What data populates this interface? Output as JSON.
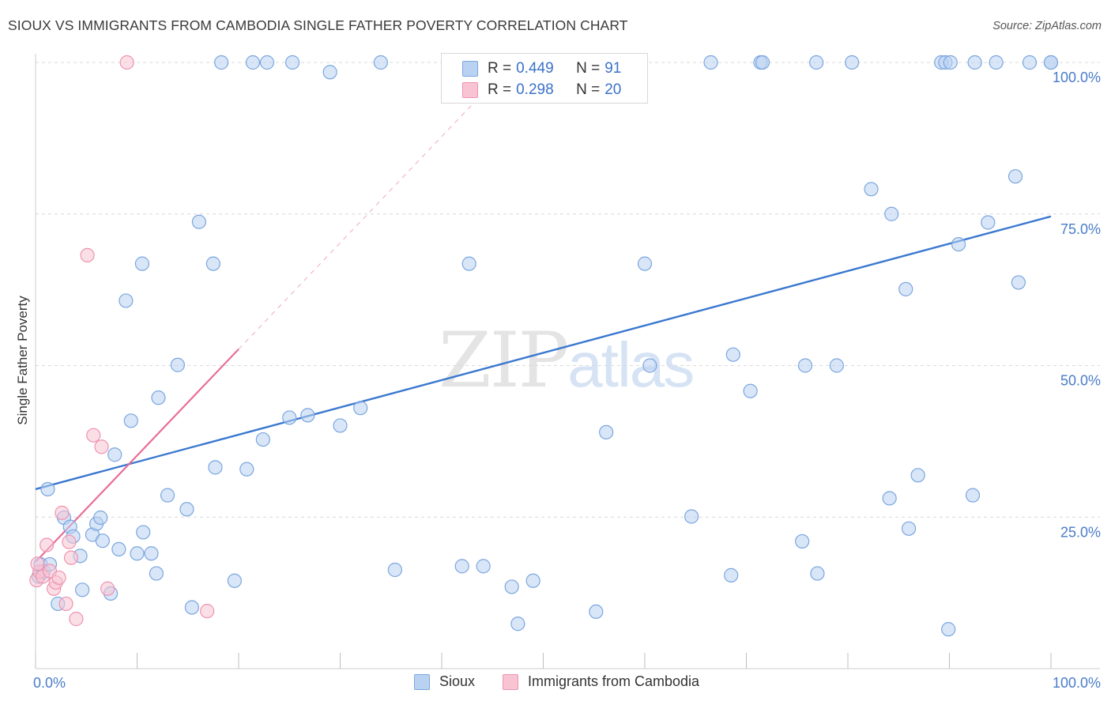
{
  "title": "SIOUX VS IMMIGRANTS FROM CAMBODIA SINGLE FATHER POVERTY CORRELATION CHART",
  "source": "Source: ZipAtlas.com",
  "watermark": {
    "zip": "ZIP",
    "atlas": "atlas"
  },
  "legend": {
    "rows": [
      {
        "r_label": "R = ",
        "r_value": "0.449",
        "n_label": "N = ",
        "n_value": "91"
      },
      {
        "r_label": "R = ",
        "r_value": "0.298",
        "n_label": "N = ",
        "n_value": "20"
      }
    ]
  },
  "colors": {
    "sioux_fill": "#b9d2f2",
    "sioux_stroke": "#7aa6de",
    "sioux_line": "#3a78cf",
    "cambodia_fill": "#f8c4d3",
    "cambodia_stroke": "#ee93b0",
    "cambodia_line": "#e86e96",
    "tick_text": "#4a7cc9",
    "grid": "#d9d9d9"
  },
  "chart_data": {
    "type": "scatter",
    "title": "SIOUX VS IMMIGRANTS FROM CAMBODIA SINGLE FATHER POVERTY CORRELATION CHART",
    "xlabel": "",
    "ylabel": "Single Father Poverty",
    "xlim": [
      0,
      100
    ],
    "ylim": [
      0,
      100
    ],
    "x_tick_labels": [
      "0.0%",
      "100.0%"
    ],
    "y_ticks": [
      25,
      50,
      75,
      100
    ],
    "y_tick_labels": [
      "25.0%",
      "50.0%",
      "75.0%",
      "100.0%"
    ],
    "grid": true,
    "legend_position": "bottom",
    "series": [
      {
        "name": "Sioux",
        "r": 0.449,
        "n": 91,
        "trend": {
          "x": [
            0,
            100
          ],
          "y": [
            29.6,
            74.6
          ],
          "style": "solid"
        },
        "points": [
          [
            0.3,
            15.2
          ],
          [
            0.5,
            17.2
          ],
          [
            0.8,
            16.0
          ],
          [
            1.2,
            29.6
          ],
          [
            1.4,
            17.2
          ],
          [
            2.2,
            10.7
          ],
          [
            2.8,
            24.9
          ],
          [
            3.4,
            23.4
          ],
          [
            3.7,
            21.8
          ],
          [
            4.4,
            18.6
          ],
          [
            4.6,
            13.0
          ],
          [
            5.6,
            22.1
          ],
          [
            6.0,
            23.9
          ],
          [
            6.4,
            24.9
          ],
          [
            6.6,
            21.1
          ],
          [
            7.4,
            12.4
          ],
          [
            7.8,
            35.3
          ],
          [
            8.2,
            19.7
          ],
          [
            8.9,
            60.7
          ],
          [
            9.4,
            40.9
          ],
          [
            10.0,
            19.0
          ],
          [
            10.5,
            66.8
          ],
          [
            10.6,
            22.5
          ],
          [
            11.4,
            19.0
          ],
          [
            11.9,
            15.7
          ],
          [
            12.1,
            44.7
          ],
          [
            13.0,
            28.6
          ],
          [
            14.0,
            50.1
          ],
          [
            14.9,
            26.3
          ],
          [
            15.4,
            10.1
          ],
          [
            16.1,
            73.7
          ],
          [
            17.5,
            66.8
          ],
          [
            17.7,
            33.2
          ],
          [
            18.3,
            100.0
          ],
          [
            19.6,
            14.5
          ],
          [
            20.8,
            32.9
          ],
          [
            21.4,
            100.0
          ],
          [
            22.4,
            37.8
          ],
          [
            22.8,
            100.0
          ],
          [
            25.0,
            41.4
          ],
          [
            25.3,
            100.0
          ],
          [
            26.8,
            41.8
          ],
          [
            29.0,
            98.4
          ],
          [
            30.0,
            40.1
          ],
          [
            32.0,
            43.0
          ],
          [
            34.0,
            100.0
          ],
          [
            35.4,
            16.3
          ],
          [
            42.0,
            16.9
          ],
          [
            42.7,
            66.8
          ],
          [
            44.1,
            16.9
          ],
          [
            46.9,
            13.5
          ],
          [
            47.5,
            7.4
          ],
          [
            49.0,
            14.5
          ],
          [
            52.1,
            100.0
          ],
          [
            55.2,
            9.4
          ],
          [
            56.2,
            39.0
          ],
          [
            60.0,
            66.8
          ],
          [
            60.5,
            50.0
          ],
          [
            64.6,
            25.1
          ],
          [
            66.5,
            100.0
          ],
          [
            68.5,
            15.4
          ],
          [
            68.7,
            51.8
          ],
          [
            70.4,
            45.8
          ],
          [
            71.4,
            100.0
          ],
          [
            71.6,
            100.0
          ],
          [
            75.5,
            21.0
          ],
          [
            75.8,
            50.0
          ],
          [
            76.9,
            100.0
          ],
          [
            77.0,
            15.7
          ],
          [
            78.9,
            50.0
          ],
          [
            80.4,
            100.0
          ],
          [
            82.3,
            79.1
          ],
          [
            84.1,
            28.1
          ],
          [
            84.3,
            75.0
          ],
          [
            85.7,
            62.6
          ],
          [
            86.0,
            23.1
          ],
          [
            86.9,
            31.9
          ],
          [
            89.2,
            100.0
          ],
          [
            89.6,
            100.0
          ],
          [
            89.9,
            6.5
          ],
          [
            90.1,
            100.0
          ],
          [
            90.9,
            70.0
          ],
          [
            92.3,
            28.6
          ],
          [
            92.5,
            100.0
          ],
          [
            93.8,
            73.6
          ],
          [
            94.6,
            100.0
          ],
          [
            96.5,
            81.2
          ],
          [
            96.8,
            63.7
          ],
          [
            97.9,
            100.0
          ],
          [
            100.0,
            100.0
          ],
          [
            100.0,
            100.0
          ]
        ]
      },
      {
        "name": "Immigrants from Cambodia",
        "r": 0.298,
        "n": 20,
        "trend": {
          "x": [
            0,
            20
          ],
          "y": [
            17.6,
            52.7
          ],
          "extended_x": [
            20,
            46
          ],
          "extended_y": [
            52.7,
            98.3
          ],
          "style": "solid+dashed"
        },
        "points": [
          [
            0.1,
            14.6
          ],
          [
            0.4,
            16.0
          ],
          [
            0.7,
            15.2
          ],
          [
            1.1,
            20.4
          ],
          [
            1.4,
            16.1
          ],
          [
            1.8,
            13.2
          ],
          [
            2.0,
            14.2
          ],
          [
            2.3,
            15.0
          ],
          [
            2.6,
            25.7
          ],
          [
            3.0,
            10.7
          ],
          [
            3.3,
            20.9
          ],
          [
            3.5,
            18.3
          ],
          [
            4.0,
            8.2
          ],
          [
            5.1,
            68.2
          ],
          [
            5.7,
            38.5
          ],
          [
            6.5,
            36.6
          ],
          [
            7.1,
            13.2
          ],
          [
            9.0,
            100.0
          ],
          [
            16.9,
            9.5
          ],
          [
            0.2,
            17.3
          ]
        ]
      }
    ]
  },
  "bottom_legend": {
    "sioux": "Sioux",
    "cambodia": "Immigrants from Cambodia"
  }
}
